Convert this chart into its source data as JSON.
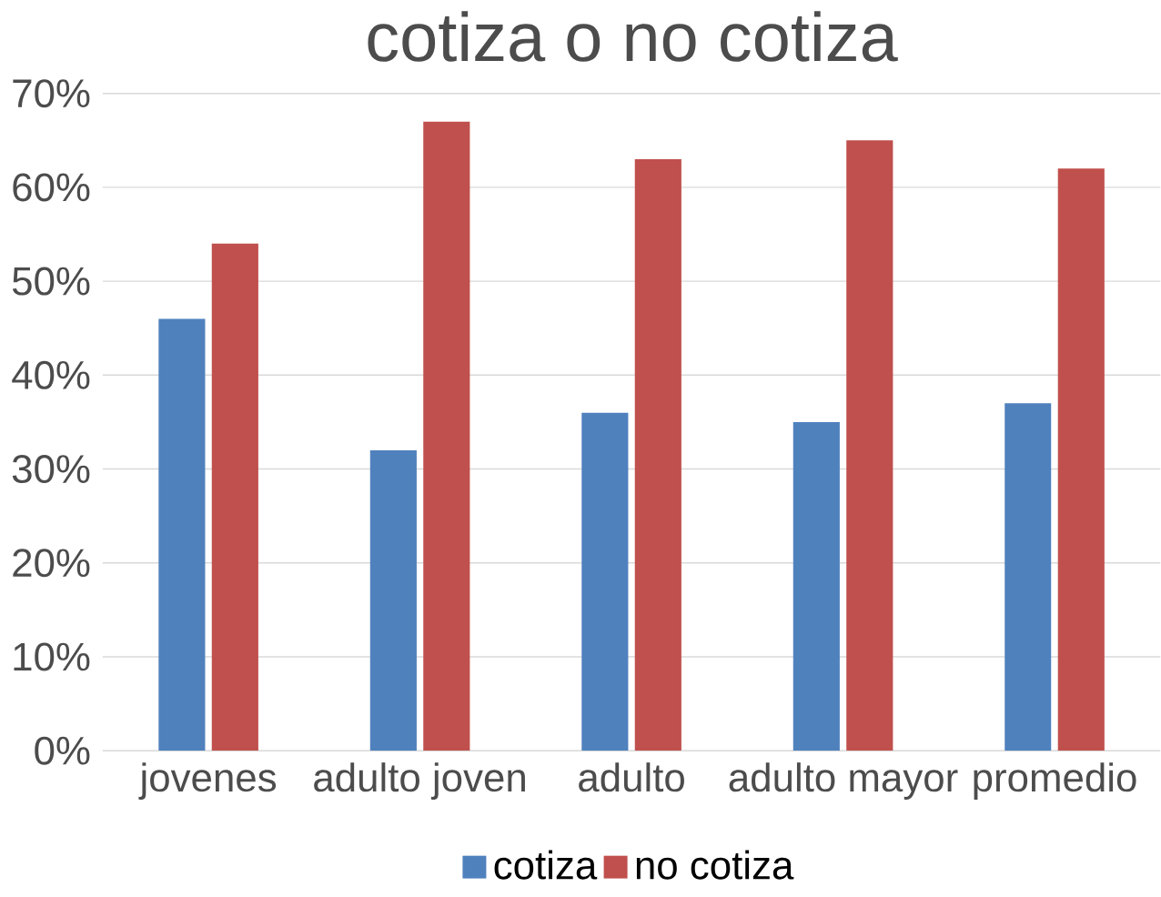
{
  "chart_data": {
    "type": "bar",
    "title": "cotiza  o no cotiza",
    "categories": [
      "jovenes",
      "adulto joven",
      "adulto",
      "adulto mayor",
      "promedio"
    ],
    "series": [
      {
        "name": "cotiza",
        "color": "#4f81bd",
        "values": [
          46,
          32,
          36,
          35,
          37
        ]
      },
      {
        "name": "no cotiza",
        "color": "#c0504d",
        "values": [
          54,
          67,
          63,
          65,
          62
        ]
      }
    ],
    "ylim": [
      0,
      70
    ],
    "yticks": [
      {
        "value": 0,
        "label": "0%"
      },
      {
        "value": 10,
        "label": "10%"
      },
      {
        "value": 20,
        "label": "20%"
      },
      {
        "value": 30,
        "label": "30%"
      },
      {
        "value": 40,
        "label": "40%"
      },
      {
        "value": 50,
        "label": "50%"
      },
      {
        "value": 60,
        "label": "60%"
      },
      {
        "value": 70,
        "label": "70%"
      }
    ],
    "grid": "y",
    "legend": "bottom"
  }
}
